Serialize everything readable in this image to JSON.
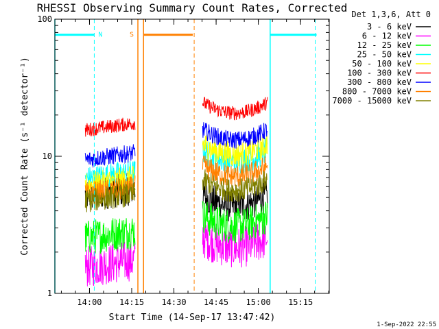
{
  "chart_data": {
    "type": "line",
    "title": "RHESSI Observing Summary Count Rates, Corrected",
    "ylabel": "Corrected Count Rate (s⁻¹ detector⁻¹)",
    "xlabel": "Start Time (14-Sep-17 13:47:42)",
    "yscale": "log",
    "ylim": [
      1,
      100
    ],
    "y_ticks": [
      {
        "value": 1,
        "label": "1"
      },
      {
        "value": 10,
        "label": "10"
      },
      {
        "value": 100,
        "label": "100"
      }
    ],
    "xlim_minutes": [
      0,
      97.5
    ],
    "x_ticks": [
      {
        "label": "14:00"
      },
      {
        "label": "14:15"
      },
      {
        "label": "14:30"
      },
      {
        "label": "14:45"
      },
      {
        "label": "15:00"
      },
      {
        "label": "15:15"
      }
    ],
    "legend_title": "Det 1,3,6, Att 0",
    "legend_position": "right",
    "series": [
      {
        "name": "3 - 6 keV",
        "color": "#000000",
        "level1": 5.5,
        "level2": 4.6,
        "noise": 0.28
      },
      {
        "name": "6 - 12 keV",
        "color": "#ff00ff",
        "level1": 1.65,
        "level2": 2.3,
        "noise": 0.35
      },
      {
        "name": "12 - 25 keV",
        "color": "#00ff00",
        "level1": 2.7,
        "level2": 3.3,
        "noise": 0.3
      },
      {
        "name": "25 - 50 keV",
        "color": "#00ffff",
        "level1": 7.2,
        "level2": 9.8,
        "noise": 0.22
      },
      {
        "name": "50 - 100 keV",
        "color": "#ffff00",
        "level1": 6.5,
        "level2": 11.0,
        "noise": 0.22
      },
      {
        "name": "100 - 300 keV",
        "color": "#ff0000",
        "level1": 16.5,
        "level2": 22.0,
        "noise": 0.12
      },
      {
        "name": "300 - 800 keV",
        "color": "#0000ff",
        "level1": 10.0,
        "level2": 14.0,
        "noise": 0.15
      },
      {
        "name": "800 - 7000 keV",
        "color": "#ff8000",
        "level1": 5.6,
        "level2": 7.6,
        "noise": 0.2
      },
      {
        "name": "7000 - 15000 keV",
        "color": "#808000",
        "level1": 5.0,
        "level2": 6.0,
        "noise": 0.2
      }
    ],
    "segments": [
      {
        "start_min": 10.8,
        "end_min": 28.5
      },
      {
        "start_min": 52.5,
        "end_min": 75.5
      }
    ],
    "flags": [
      {
        "label": "N",
        "color": "#00ffff",
        "bars_min": [
          [
            0,
            14
          ],
          [
            76.5,
            93
          ]
        ],
        "dashed_min": [
          14,
          92.5
        ],
        "solid_min": [
          0,
          76.5
        ]
      },
      {
        "label": "S",
        "color": "#ff8000",
        "bars_min": [
          [
            31.5,
            49
          ]
        ],
        "dashed_min": [
          49.5
        ],
        "solid_min": [
          29.5,
          31.5
        ]
      }
    ],
    "flag_level": 77,
    "footer_date": "1-Sep-2022 22:55"
  }
}
